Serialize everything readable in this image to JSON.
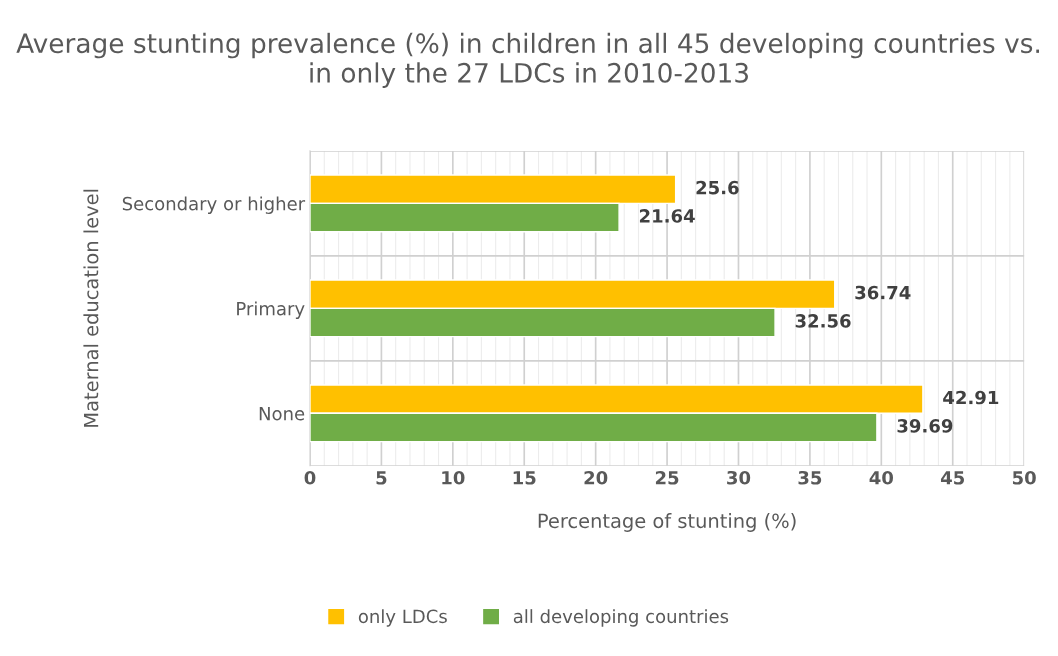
{
  "chart_data": {
    "type": "bar",
    "orientation": "horizontal",
    "title": "Average stunting prevalence (%) in children in all 45 developing countries vs. in only the 27 LDCs in 2010-2013",
    "xlabel": "Percentage of stunting (%)",
    "ylabel": "Maternal education level",
    "categories": [
      "Secondary or higher",
      "Primary",
      "None"
    ],
    "series": [
      {
        "name": "only LDCs",
        "color": "#ffc000",
        "values": [
          25.6,
          36.74,
          42.91
        ]
      },
      {
        "name": "all developing countries",
        "color": "#70ad47",
        "values": [
          21.64,
          32.56,
          39.69
        ]
      }
    ],
    "xlim": [
      0,
      50
    ],
    "xticks": [
      0,
      5,
      10,
      15,
      20,
      25,
      30,
      35,
      40,
      45,
      50
    ],
    "grid": true,
    "legend": "bottom",
    "data_labels": true
  }
}
